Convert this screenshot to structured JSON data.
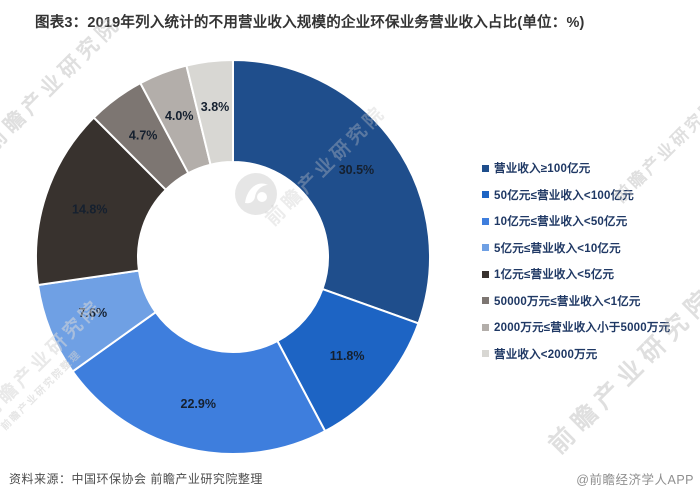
{
  "title": "图表3：2019年列入统计的不用营业收入规模的企业环保业务营业收入占比(单位：%)",
  "chart_data": {
    "type": "pie",
    "subtype": "donut",
    "title": "2019年列入统计的不用营业收入规模的企业环保业务营业收入占比",
    "unit": "%",
    "categories": [
      "营业收入≥100亿元",
      "50亿元≤营业收入<100亿元",
      "10亿元≤营业收入<50亿元",
      "5亿元≤营业收入<10亿元",
      "1亿元≤营业收入<5亿元",
      "50000万元≤营业收入<1亿元",
      "2000万元≤营业收入小于5000万元",
      "营业收入<2000万元"
    ],
    "values": [
      30.5,
      11.8,
      22.9,
      7.6,
      14.8,
      4.7,
      4.0,
      3.8
    ],
    "labels": [
      "30.5%",
      "11.8%",
      "22.9%",
      "7.6%",
      "14.8%",
      "4.7%",
      "4.0%",
      "3.8%"
    ],
    "colors": [
      "#1f4e8c",
      "#1d64c4",
      "#3e7edd",
      "#6fa0e4",
      "#38322e",
      "#7d7672",
      "#b3aeaa",
      "#d8d7d3"
    ],
    "start_angle_deg": 0,
    "direction": "clockwise",
    "legend_position": "right",
    "donut_hole_ratio": 0.48
  },
  "legend": {
    "items": [
      {
        "label": "营业收入≥100亿元",
        "color": "#1f4e8c"
      },
      {
        "label": "50亿元≤营业收入<100亿元",
        "color": "#1d64c4"
      },
      {
        "label": "10亿元≤营业收入<50亿元",
        "color": "#3e7edd"
      },
      {
        "label": "5亿元≤营业收入<10亿元",
        "color": "#6fa0e4"
      },
      {
        "label": "1亿元≤营业收入<5亿元",
        "color": "#38322e"
      },
      {
        "label": "50000万元≤营业收入<1亿元",
        "color": "#7d7672"
      },
      {
        "label": "2000万元≤营业收入小于5000万元",
        "color": "#b3aeaa"
      },
      {
        "label": "营业收入<2000万元",
        "color": "#d8d7d3"
      }
    ]
  },
  "footer": {
    "source": "资料来源：中国环保协会 前瞻产业研究院整理",
    "credit": "@前瞻经济学人APP"
  },
  "watermark": {
    "text": "前瞻产业研究院",
    "small_text": "前瞻产业研究院整理"
  }
}
